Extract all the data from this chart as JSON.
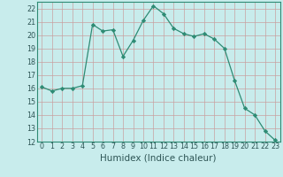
{
  "x": [
    0,
    1,
    2,
    3,
    4,
    5,
    6,
    7,
    8,
    9,
    10,
    11,
    12,
    13,
    14,
    15,
    16,
    17,
    18,
    19,
    20,
    21,
    22,
    23
  ],
  "y": [
    16.1,
    15.8,
    16.0,
    16.0,
    16.2,
    20.8,
    20.3,
    20.4,
    18.4,
    19.6,
    21.1,
    22.2,
    21.6,
    20.5,
    20.1,
    19.9,
    20.1,
    19.7,
    19.0,
    16.6,
    14.5,
    14.0,
    12.8,
    12.1
  ],
  "line_color": "#2e8b74",
  "marker": "D",
  "marker_size": 2.2,
  "bg_color": "#c8ecec",
  "grid_color_v": "#c8a0a0",
  "grid_color_h": "#c8a0a0",
  "xlabel": "Humidex (Indice chaleur)",
  "ylim": [
    12,
    22.5
  ],
  "yticks": [
    12,
    13,
    14,
    15,
    16,
    17,
    18,
    19,
    20,
    21,
    22
  ],
  "xticks": [
    0,
    1,
    2,
    3,
    4,
    5,
    6,
    7,
    8,
    9,
    10,
    11,
    12,
    13,
    14,
    15,
    16,
    17,
    18,
    19,
    20,
    21,
    22,
    23
  ],
  "tick_label_size": 5.8,
  "xlabel_size": 7.5,
  "spine_color": "#2e8b74",
  "tick_color": "#2e5555"
}
